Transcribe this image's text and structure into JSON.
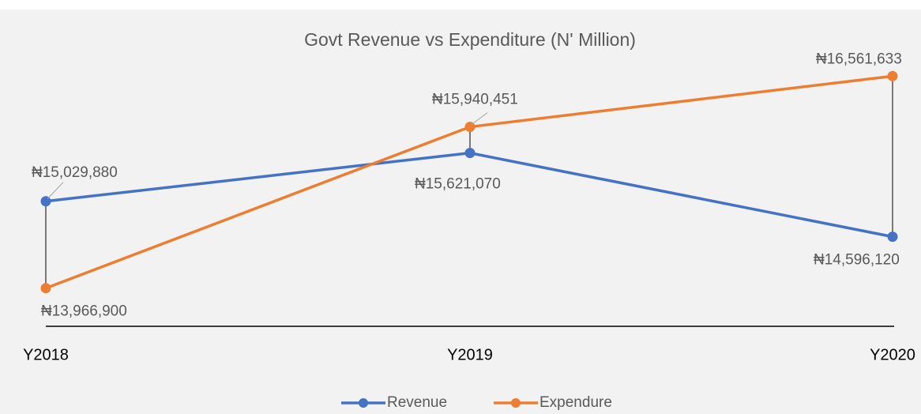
{
  "chart_data": {
    "type": "line",
    "title": "Govt Revenue vs Expenditure (N' Million)",
    "categories": [
      "Y2018",
      "Y2019",
      "Y2020"
    ],
    "series": [
      {
        "name": "Revenue",
        "color": "#4472c4",
        "values": [
          15029880,
          15621070,
          14596120
        ],
        "value_labels": [
          "₦15,029,880",
          "₦15,621,070",
          "₦14,596,120"
        ]
      },
      {
        "name": "Expendure",
        "color": "#ed7d31",
        "values": [
          13966900,
          15940451,
          16561633
        ],
        "value_labels": [
          "₦13,966,900",
          "₦15,940,451",
          "₦16,561,633"
        ]
      }
    ],
    "ylim": [
      13500000,
      17000000
    ],
    "legend": "bottom",
    "high_low_lines": true
  }
}
